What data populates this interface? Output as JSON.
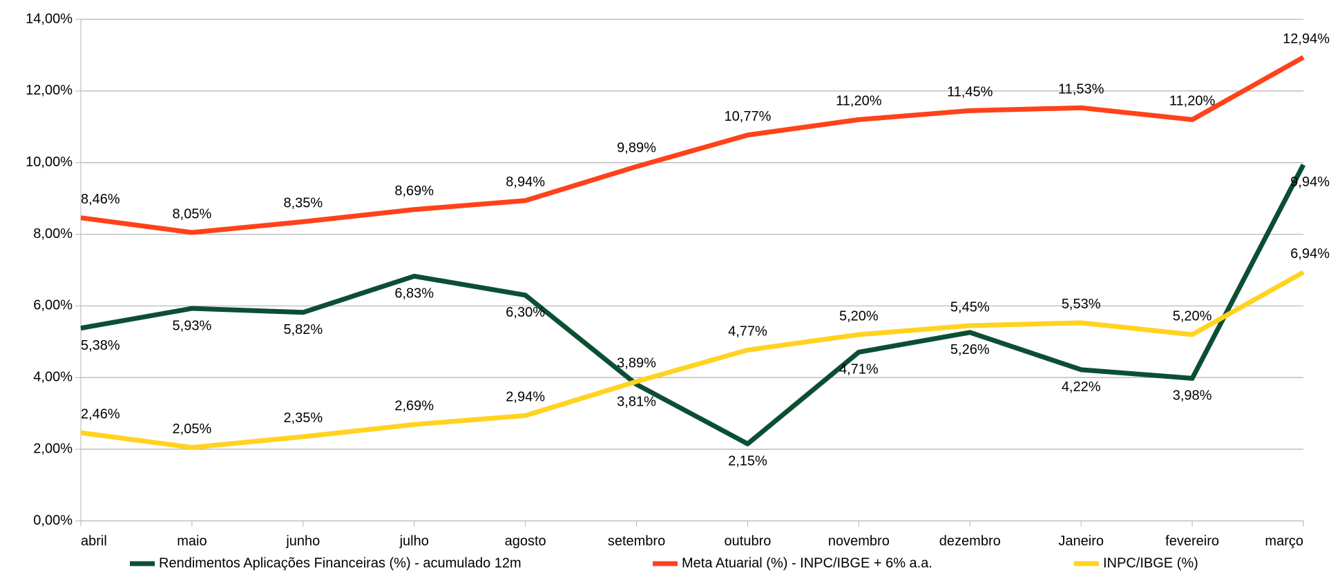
{
  "chart_data": {
    "type": "line",
    "categories": [
      "abril",
      "maio",
      "junho",
      "julho",
      "agosto",
      "setembro",
      "outubro",
      "novembro",
      "dezembro",
      "Janeiro",
      "fevereiro",
      "março"
    ],
    "series": [
      {
        "name": "Rendimentos Aplicações Financeiras (%) - acumulado 12m",
        "color": "#0b4f33",
        "values": [
          5.38,
          5.93,
          5.82,
          6.83,
          6.3,
          3.81,
          2.15,
          4.71,
          5.26,
          4.22,
          3.98,
          9.94
        ],
        "value_labels": [
          "5,38%",
          "5,93%",
          "5,82%",
          "6,83%",
          "6,30%",
          "3,81%",
          "2,15%",
          "4,71%",
          "5,26%",
          "4,22%",
          "3,98%",
          "9,94%"
        ]
      },
      {
        "name": "Meta Atuarial (%) - INPC/IBGE + 6% a.a.",
        "color": "#ff4219",
        "values": [
          8.46,
          8.05,
          8.35,
          8.69,
          8.94,
          9.89,
          10.77,
          11.2,
          11.45,
          11.53,
          11.2,
          12.94
        ],
        "value_labels": [
          "8,46%",
          "8,05%",
          "8,35%",
          "8,69%",
          "8,94%",
          "9,89%",
          "10,77%",
          "11,20%",
          "11,45%",
          "11,53%",
          "11,20%",
          "12,94%"
        ]
      },
      {
        "name": "INPC/IBGE (%)",
        "color": "#ffd320",
        "values": [
          2.46,
          2.05,
          2.35,
          2.69,
          2.94,
          3.89,
          4.77,
          5.2,
          5.45,
          5.53,
          5.2,
          6.94
        ],
        "value_labels": [
          "2,46%",
          "2,05%",
          "2,35%",
          "2,69%",
          "2,94%",
          "3,89%",
          "4,77%",
          "5,20%",
          "5,45%",
          "5,53%",
          "5,20%",
          "6,94%"
        ]
      }
    ],
    "ylim": [
      0,
      14
    ],
    "yticks": [
      {
        "value": 0,
        "label": "0,00%"
      },
      {
        "value": 2,
        "label": "2,00%"
      },
      {
        "value": 4,
        "label": "4,00%"
      },
      {
        "value": 6,
        "label": "6,00%"
      },
      {
        "value": 8,
        "label": "8,00%"
      },
      {
        "value": 10,
        "label": "10,00%"
      },
      {
        "value": 12,
        "label": "12,00%"
      },
      {
        "value": 14,
        "label": "14,00%"
      }
    ],
    "grid": true,
    "legend": "bottom"
  }
}
